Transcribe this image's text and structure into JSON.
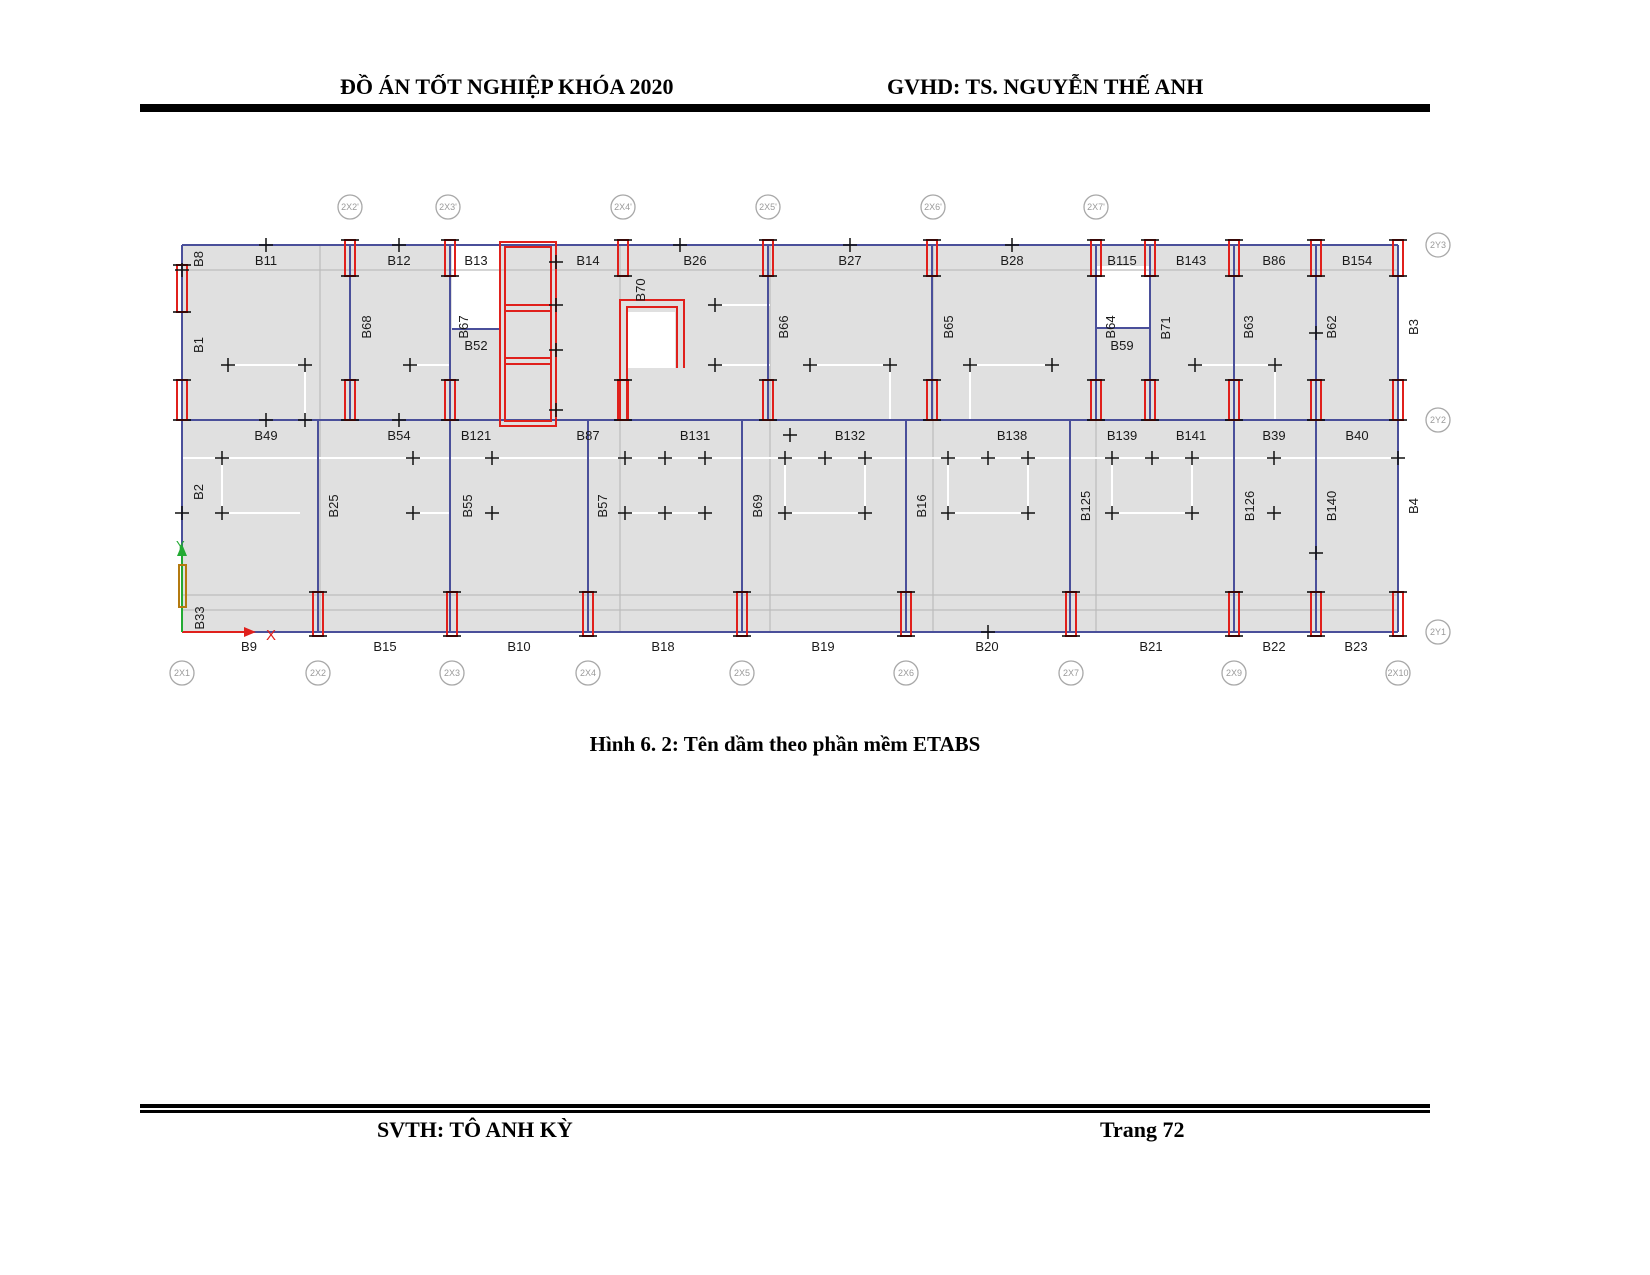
{
  "header": {
    "left": "ĐỒ ÁN TỐT NGHIỆP KHÓA 2020",
    "right": "GVHD: TS. NGUYỄN THẾ ANH"
  },
  "footer": {
    "left": "SVTH: TÔ ANH KỲ",
    "right": "Trang 72"
  },
  "figure": {
    "caption": "Hình 6. 2: Tên dầm theo phần mềm ETABS",
    "grid_top": [
      "2X2'",
      "2X3'",
      "2X4'",
      "2X5'",
      "2X6'",
      "2X7'"
    ],
    "grid_bottom": [
      "2X1",
      "2X2",
      "2X3",
      "2X4",
      "2X5",
      "2X6",
      "2X7",
      "2X9",
      "2X10"
    ],
    "grid_right": [
      "2Y3",
      "2Y2",
      "2Y1"
    ],
    "beams_row_top": [
      "B8",
      "B11",
      "B12",
      "B13",
      "B14",
      "B26",
      "B27",
      "B28",
      "B115",
      "B143",
      "B86",
      "B154"
    ],
    "beams_row_mid": [
      "B49",
      "B54",
      "B121",
      "B87",
      "B131",
      "B132",
      "B138",
      "B139",
      "B141",
      "B39",
      "B40"
    ],
    "beams_row_bottom": [
      "B9",
      "B15",
      "B10",
      "B18",
      "B19",
      "B20",
      "B21",
      "B22",
      "B23"
    ],
    "beams_vert_upper": [
      "B1",
      "B68",
      "B67",
      "B52",
      "B70",
      "B66",
      "B65",
      "B64",
      "B59",
      "B71",
      "B63",
      "B62",
      "B3"
    ],
    "beams_vert_lower": [
      "B2",
      "B25",
      "B55",
      "B57",
      "B69",
      "B16",
      "B125",
      "B126",
      "B140",
      "B4",
      "B33"
    ],
    "axis_x": "X",
    "axis_y": "Y",
    "colors": {
      "beam": "#4a4f9a",
      "column": "#e0201c",
      "slab": "#e0e0e0",
      "grid": "#bdbdbd"
    }
  }
}
